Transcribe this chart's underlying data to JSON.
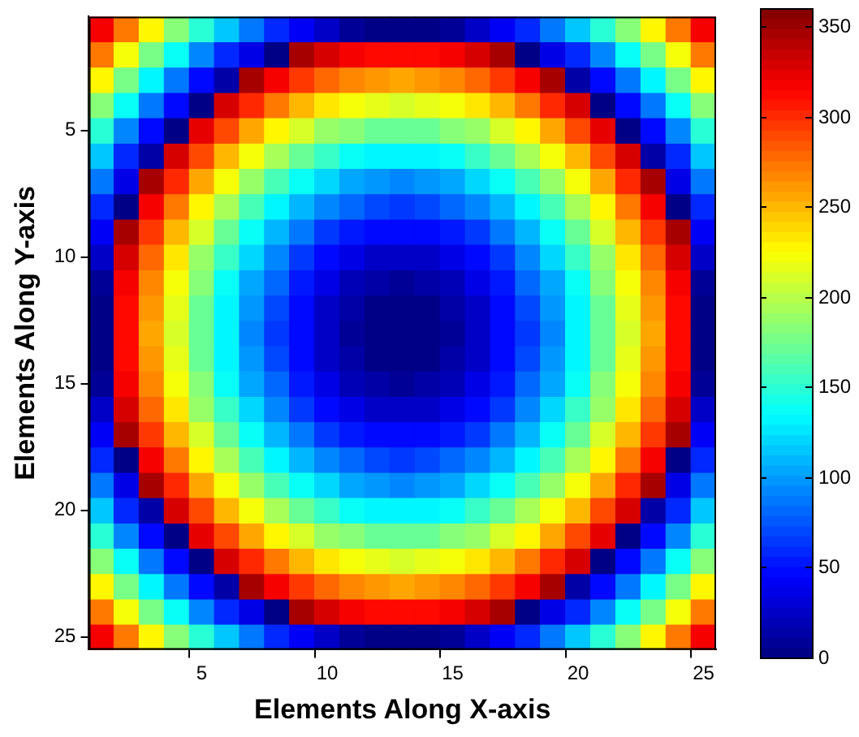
{
  "chart_data": {
    "type": "heatmap",
    "xlabel": "Elements Along X-axis",
    "ylabel": "Elements Along Y-axis",
    "categories": [
      null,
      null,
      null,
      null,
      "5",
      null,
      null,
      null,
      null,
      "10",
      null,
      null,
      null,
      null,
      "15",
      null,
      null,
      null,
      null,
      "20",
      null,
      null,
      null,
      null,
      "25"
    ],
    "y_categories": [
      null,
      null,
      null,
      null,
      "5",
      null,
      null,
      null,
      null,
      "10",
      null,
      null,
      null,
      null,
      "15",
      null,
      null,
      null,
      null,
      "20",
      null,
      null,
      null,
      null,
      "25"
    ],
    "clim": [
      0,
      360
    ],
    "cticks": [
      0,
      50,
      100,
      150,
      200,
      250,
      300,
      350
    ],
    "cells": [
      [
        320,
        270,
        225,
        185,
        150,
        115,
        85,
        60,
        40,
        25,
        10,
        5,
        0,
        5,
        10,
        25,
        40,
        60,
        85,
        115,
        150,
        185,
        225,
        270,
        320
      ],
      [
        270,
        220,
        175,
        135,
        95,
        60,
        35,
        5,
        345,
        330,
        315,
        310,
        310,
        310,
        315,
        330,
        345,
        5,
        35,
        60,
        95,
        135,
        175,
        220,
        270
      ],
      [
        225,
        175,
        130,
        85,
        50,
        15,
        345,
        315,
        295,
        280,
        265,
        260,
        255,
        260,
        265,
        280,
        295,
        315,
        345,
        15,
        50,
        85,
        130,
        175,
        225
      ],
      [
        185,
        135,
        85,
        45,
        5,
        330,
        300,
        270,
        250,
        235,
        220,
        215,
        210,
        215,
        220,
        235,
        250,
        270,
        300,
        330,
        5,
        45,
        85,
        135,
        185
      ],
      [
        150,
        95,
        50,
        5,
        325,
        290,
        255,
        230,
        210,
        190,
        180,
        170,
        170,
        170,
        180,
        190,
        210,
        230,
        255,
        290,
        325,
        5,
        50,
        95,
        150
      ],
      [
        115,
        60,
        15,
        330,
        290,
        250,
        220,
        195,
        170,
        155,
        140,
        130,
        130,
        130,
        140,
        155,
        170,
        195,
        220,
        250,
        290,
        330,
        15,
        60,
        115
      ],
      [
        85,
        35,
        345,
        300,
        255,
        220,
        190,
        160,
        135,
        120,
        105,
        100,
        95,
        100,
        105,
        120,
        135,
        160,
        190,
        220,
        255,
        300,
        345,
        35,
        85
      ],
      [
        60,
        5,
        315,
        270,
        230,
        195,
        160,
        130,
        110,
        90,
        80,
        70,
        65,
        70,
        80,
        90,
        110,
        130,
        160,
        195,
        230,
        270,
        315,
        5,
        60
      ],
      [
        40,
        345,
        295,
        250,
        210,
        170,
        135,
        110,
        85,
        65,
        55,
        45,
        45,
        45,
        55,
        65,
        85,
        110,
        135,
        170,
        210,
        250,
        295,
        345,
        40
      ],
      [
        25,
        330,
        280,
        235,
        190,
        155,
        120,
        90,
        65,
        50,
        35,
        25,
        25,
        25,
        35,
        50,
        65,
        90,
        120,
        155,
        190,
        235,
        280,
        330,
        25
      ],
      [
        10,
        315,
        265,
        220,
        180,
        140,
        105,
        80,
        55,
        35,
        20,
        15,
        10,
        15,
        20,
        35,
        55,
        80,
        105,
        140,
        180,
        220,
        265,
        315,
        10
      ],
      [
        5,
        310,
        260,
        215,
        170,
        130,
        100,
        70,
        45,
        25,
        15,
        5,
        5,
        5,
        15,
        25,
        45,
        70,
        100,
        130,
        170,
        215,
        260,
        310,
        5
      ],
      [
        0,
        310,
        255,
        210,
        170,
        130,
        95,
        65,
        45,
        25,
        10,
        5,
        0,
        5,
        10,
        25,
        45,
        65,
        95,
        130,
        170,
        210,
        255,
        310,
        0
      ],
      [
        5,
        310,
        260,
        215,
        170,
        130,
        100,
        70,
        45,
        25,
        15,
        5,
        5,
        5,
        15,
        25,
        45,
        70,
        100,
        130,
        170,
        215,
        260,
        310,
        5
      ],
      [
        10,
        315,
        265,
        220,
        180,
        140,
        105,
        80,
        55,
        35,
        20,
        15,
        10,
        15,
        20,
        35,
        55,
        80,
        105,
        140,
        180,
        220,
        265,
        315,
        10
      ],
      [
        25,
        330,
        280,
        235,
        190,
        155,
        120,
        90,
        65,
        50,
        35,
        25,
        25,
        25,
        35,
        50,
        65,
        90,
        120,
        155,
        190,
        235,
        280,
        330,
        25
      ],
      [
        40,
        345,
        295,
        250,
        210,
        170,
        135,
        110,
        85,
        65,
        55,
        45,
        45,
        45,
        55,
        65,
        85,
        110,
        135,
        170,
        210,
        250,
        295,
        345,
        40
      ],
      [
        60,
        5,
        315,
        270,
        230,
        195,
        160,
        130,
        110,
        90,
        80,
        70,
        65,
        70,
        80,
        90,
        110,
        130,
        160,
        195,
        230,
        270,
        315,
        5,
        60
      ],
      [
        85,
        35,
        345,
        300,
        255,
        220,
        190,
        160,
        135,
        120,
        105,
        100,
        95,
        100,
        105,
        120,
        135,
        160,
        190,
        220,
        255,
        300,
        345,
        35,
        85
      ],
      [
        115,
        60,
        15,
        330,
        290,
        250,
        220,
        195,
        170,
        155,
        140,
        130,
        130,
        130,
        140,
        155,
        170,
        195,
        220,
        250,
        290,
        330,
        15,
        60,
        115
      ],
      [
        150,
        95,
        50,
        5,
        325,
        290,
        255,
        230,
        210,
        190,
        180,
        170,
        170,
        170,
        180,
        190,
        210,
        230,
        255,
        290,
        325,
        5,
        50,
        95,
        150
      ],
      [
        185,
        135,
        85,
        45,
        5,
        330,
        300,
        270,
        250,
        235,
        220,
        215,
        210,
        215,
        220,
        235,
        250,
        270,
        300,
        330,
        5,
        45,
        85,
        135,
        185
      ],
      [
        225,
        175,
        130,
        85,
        50,
        15,
        345,
        315,
        295,
        280,
        265,
        260,
        255,
        260,
        265,
        280,
        295,
        315,
        345,
        15,
        50,
        85,
        130,
        175,
        225
      ],
      [
        270,
        220,
        175,
        135,
        95,
        60,
        35,
        5,
        345,
        330,
        315,
        310,
        310,
        310,
        315,
        330,
        345,
        5,
        35,
        60,
        95,
        135,
        175,
        220,
        270
      ],
      [
        320,
        270,
        225,
        185,
        150,
        115,
        85,
        60,
        40,
        25,
        10,
        5,
        0,
        5,
        10,
        25,
        40,
        60,
        85,
        115,
        150,
        185,
        225,
        270,
        320
      ]
    ]
  }
}
